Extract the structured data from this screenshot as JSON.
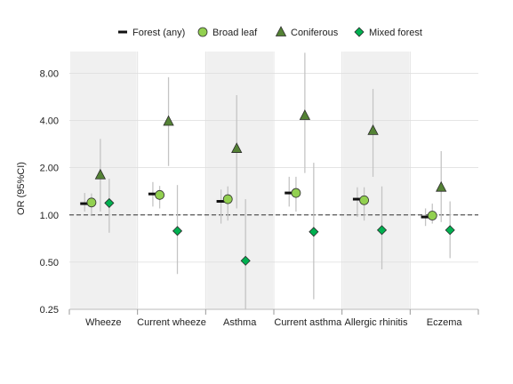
{
  "chart_data": {
    "type": "scatter",
    "subtype": "forest-plot (odds ratio point estimates with 95% CI)",
    "ylabel": "OR (95%CI)",
    "yscale": "log2",
    "ylim": [
      0.25,
      11
    ],
    "yticks": [
      0.25,
      0.5,
      1.0,
      2.0,
      4.0,
      8.0
    ],
    "ytick_labels": [
      "0.25",
      "0.50",
      "1.00",
      "2.00",
      "4.00",
      "8.00"
    ],
    "reference_line": 1.0,
    "grid": true,
    "legend_position": "top",
    "categories": [
      "Wheeze",
      "Current wheeze",
      "Asthma",
      "Current asthma",
      "Allergic rhinitis",
      "Eczema"
    ],
    "shaded_categories": [
      true,
      false,
      true,
      false,
      true,
      false
    ],
    "series": [
      {
        "name": "Forest (any)",
        "marker": "dash",
        "color": "#111111",
        "values": [
          1.18,
          1.36,
          1.22,
          1.38,
          1.26,
          0.97
        ],
        "ci_low": [
          1.05,
          1.13,
          0.88,
          1.13,
          0.97,
          0.85
        ],
        "ci_high": [
          1.38,
          1.62,
          1.45,
          1.75,
          1.5,
          1.1
        ]
      },
      {
        "name": "Broad leaf",
        "marker": "circle",
        "color": "#92d050",
        "values": [
          1.2,
          1.34,
          1.26,
          1.38,
          1.24,
          0.99
        ],
        "ci_low": [
          1.0,
          1.1,
          0.92,
          1.05,
          0.92,
          0.88
        ],
        "ci_high": [
          1.37,
          1.53,
          1.52,
          1.75,
          1.5,
          1.18
        ]
      },
      {
        "name": "Coniferous",
        "marker": "triangle",
        "color": "#548235",
        "values": [
          1.8,
          3.95,
          2.65,
          4.3,
          3.45,
          1.5
        ],
        "ci_low": [
          1.05,
          2.05,
          1.1,
          1.85,
          1.75,
          0.9
        ],
        "ci_high": [
          3.05,
          7.55,
          5.8,
          10.8,
          6.35,
          2.55
        ]
      },
      {
        "name": "Mixed forest",
        "marker": "diamond",
        "color": "#00b050",
        "values": [
          1.19,
          0.79,
          0.51,
          0.78,
          0.8,
          0.8
        ],
        "ci_low": [
          0.77,
          0.42,
          0.2,
          0.29,
          0.45,
          0.53
        ],
        "ci_high": [
          1.7,
          1.55,
          1.26,
          2.15,
          1.52,
          1.22
        ]
      }
    ]
  }
}
